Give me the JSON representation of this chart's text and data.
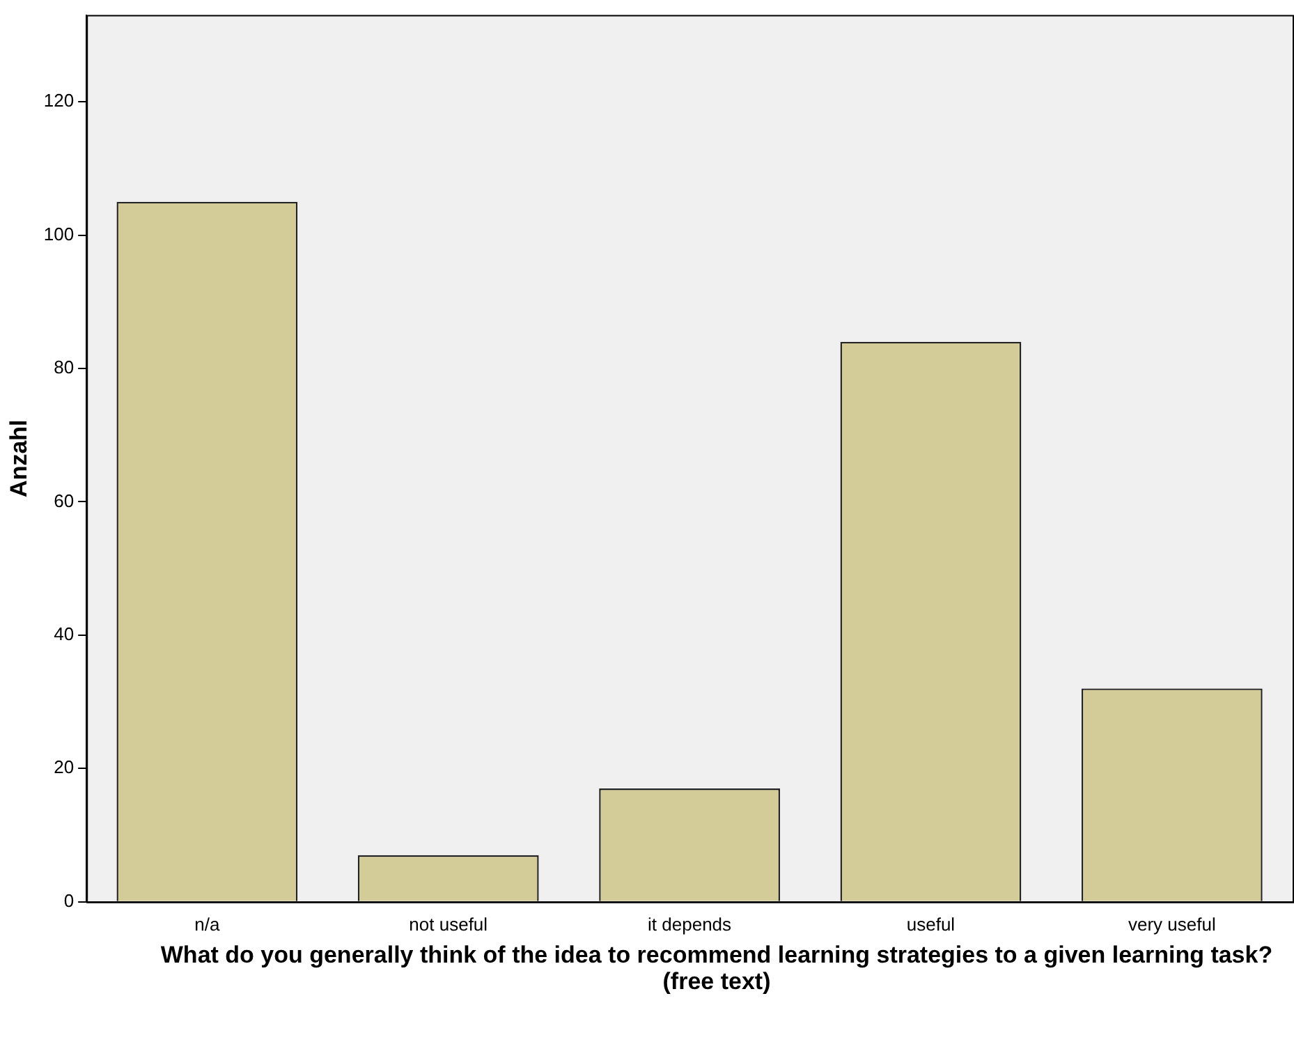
{
  "chart_data": {
    "type": "bar",
    "xlabel": "What do you generally think of the idea to recommend learning strategies to a given learning task? (free text)",
    "ylabel": "Anzahl",
    "categories": [
      "n/a",
      "not useful",
      "it depends",
      "useful",
      "very useful"
    ],
    "values": [
      105,
      7,
      17,
      84,
      32
    ],
    "color": "#d3cb98",
    "ylim": [
      0,
      133
    ],
    "yticks": [
      0,
      20,
      40,
      60,
      80,
      100,
      120
    ],
    "grid": false,
    "legend": false
  }
}
